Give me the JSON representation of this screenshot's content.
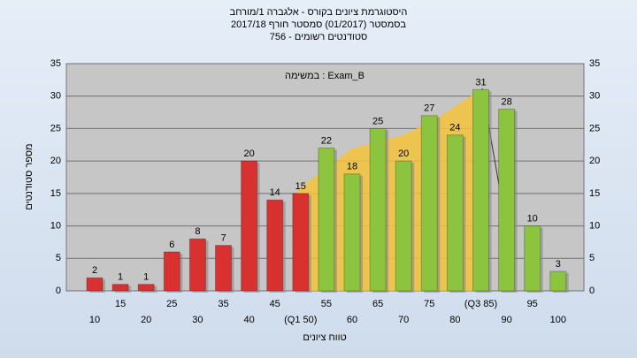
{
  "chart_data": {
    "type": "bar",
    "title": "היסטוגרמת ציונים בקורס - אלגברה 1/מורחב",
    "subtitle": "בסמסטר  (01/2017)  סמסטר חורף 2017/18",
    "subtitle2": "סטודנטים רשומים - 756",
    "annotation": "במשימה : Exam_B",
    "y_label": "מספר סטודנטים",
    "x_label": "טווח ציונים",
    "categories": [
      "10",
      "15",
      "20",
      "25",
      "30",
      "35",
      "40",
      "45",
      "(Q1 50)",
      "55",
      "60",
      "65",
      "70",
      "75",
      "80",
      "(Q3 85)",
      "90",
      "95",
      "100"
    ],
    "values": [
      2,
      1,
      1,
      6,
      8,
      7,
      20,
      14,
      15,
      22,
      18,
      25,
      20,
      27,
      24,
      31,
      28,
      10,
      3
    ],
    "colors": [
      "#d93030",
      "#d93030",
      "#d93030",
      "#d93030",
      "#d93030",
      "#d93030",
      "#d93030",
      "#d93030",
      "#d93030",
      "#8dc43f",
      "#8dc43f",
      "#8dc43f",
      "#8dc43f",
      "#8dc43f",
      "#8dc43f",
      "#8dc43f",
      "#8dc43f",
      "#8dc43f",
      "#8dc43f"
    ],
    "ylim": [
      0,
      35
    ],
    "yticks": [
      0,
      5,
      10,
      15,
      20,
      25,
      30,
      35
    ],
    "grid": true
  }
}
